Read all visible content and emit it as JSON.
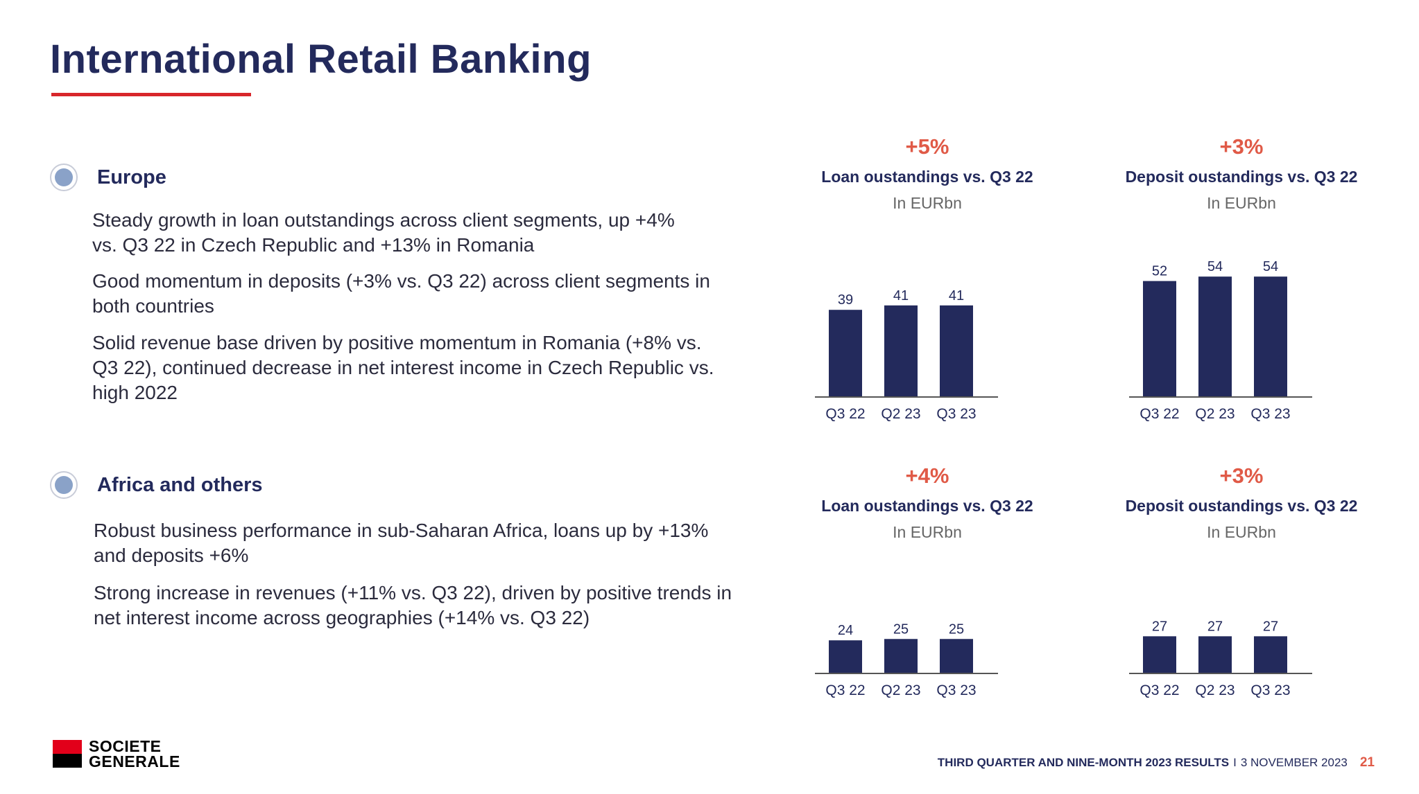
{
  "page": {
    "title": "International Retail Banking"
  },
  "sections": [
    {
      "label": "Europe",
      "paragraphs": [
        "Steady growth in loan outstandings across client segments, up +4% vs. Q3 22 in Czech Republic and +13% in Romania",
        "Good momentum in deposits (+3% vs. Q3 22) across client segments in both countries",
        "Solid revenue base driven by positive momentum in Romania (+8% vs. Q3 22), continued decrease in net interest income in Czech Republic vs. high 2022"
      ]
    },
    {
      "label": "Africa and others",
      "paragraphs": [
        "Robust business performance in sub-Saharan Africa, loans up by +13% and deposits +6%",
        "Strong increase in revenues (+11% vs. Q3 22), driven by positive trends in net interest income across geographies (+14% vs. Q3 22)"
      ]
    }
  ],
  "chart_data": [
    {
      "type": "bar",
      "change": "+5%",
      "title": "Loan oustandings vs. Q3 22",
      "subtitle": "In EURbn",
      "categories": [
        "Q3 22",
        "Q2 23",
        "Q3 23"
      ],
      "values": [
        39,
        41,
        41
      ],
      "color": "#232a5c"
    },
    {
      "type": "bar",
      "change": "+3%",
      "title": "Deposit oustandings vs. Q3 22",
      "subtitle": "In EURbn",
      "categories": [
        "Q3 22",
        "Q2 23",
        "Q3 23"
      ],
      "values": [
        52,
        54,
        54
      ],
      "color": "#232a5c"
    },
    {
      "type": "bar",
      "change": "+4%",
      "title": "Loan oustandings vs. Q3 22",
      "subtitle": "In EURbn",
      "categories": [
        "Q3 22",
        "Q2 23",
        "Q3 23"
      ],
      "values": [
        24,
        25,
        25
      ],
      "color": "#232a5c"
    },
    {
      "type": "bar",
      "change": "+3%",
      "title": "Deposit oustandings vs. Q3 22",
      "subtitle": "In EURbn",
      "categories": [
        "Q3 22",
        "Q2 23",
        "Q3 23"
      ],
      "values": [
        27,
        27,
        27
      ],
      "color": "#232a5c"
    }
  ],
  "logo": {
    "line1": "SOCIETE",
    "line2": "GENERALE"
  },
  "footer": {
    "report": "THIRD QUARTER AND NINE-MONTH 2023 RESULTS",
    "separator": "I",
    "date": "3 NOVEMBER 2023",
    "page_number": "21"
  }
}
